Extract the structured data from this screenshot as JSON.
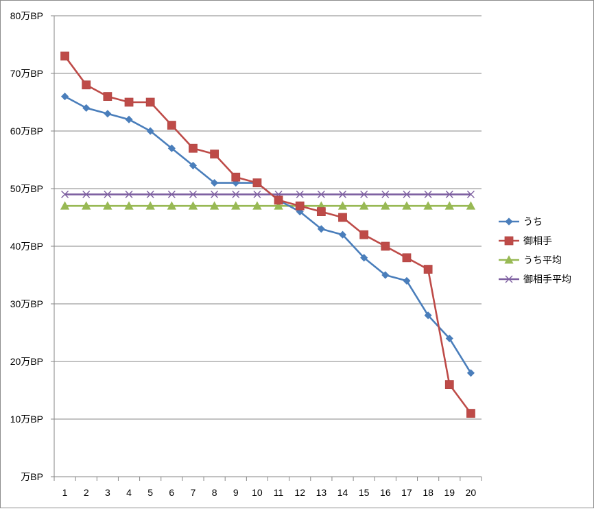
{
  "chart_data": {
    "type": "line",
    "title": "",
    "xlabel": "",
    "ylabel": "",
    "x": [
      1,
      2,
      3,
      4,
      5,
      6,
      7,
      8,
      9,
      10,
      11,
      12,
      13,
      14,
      15,
      16,
      17,
      18,
      19,
      20
    ],
    "ylim": [
      0,
      80
    ],
    "y_ticks": [
      0,
      10,
      20,
      30,
      40,
      50,
      60,
      70,
      80
    ],
    "y_tick_labels": [
      "万BP",
      "10万BP",
      "20万BP",
      "30万BP",
      "40万BP",
      "50万BP",
      "60万BP",
      "70万BP",
      "80万BP"
    ],
    "grid": true,
    "legend_position": "right",
    "series": [
      {
        "name": "うち",
        "color": "#4a7ebb",
        "marker": "diamond",
        "values": [
          66,
          64,
          63,
          62,
          60,
          57,
          54,
          51,
          51,
          51,
          48,
          46,
          43,
          42,
          38,
          35,
          34,
          28,
          24,
          18
        ]
      },
      {
        "name": "御相手",
        "color": "#be4b48",
        "marker": "square",
        "values": [
          73,
          68,
          66,
          65,
          65,
          61,
          57,
          56,
          52,
          51,
          48,
          47,
          46,
          45,
          42,
          40,
          38,
          36,
          16,
          11
        ]
      },
      {
        "name": "うち平均",
        "color": "#98b954",
        "marker": "triangle",
        "values": [
          47,
          47,
          47,
          47,
          47,
          47,
          47,
          47,
          47,
          47,
          47,
          47,
          47,
          47,
          47,
          47,
          47,
          47,
          47,
          47
        ]
      },
      {
        "name": "御相手平均",
        "color": "#7d5fa0",
        "marker": "x",
        "values": [
          49,
          49,
          49,
          49,
          49,
          49,
          49,
          49,
          49,
          49,
          49,
          49,
          49,
          49,
          49,
          49,
          49,
          49,
          49,
          49
        ]
      }
    ]
  }
}
